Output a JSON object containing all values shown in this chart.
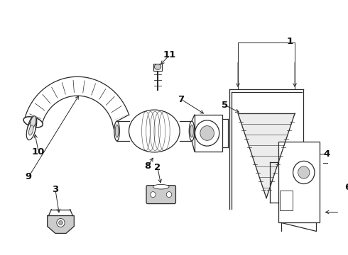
{
  "background_color": "#ffffff",
  "line_color": "#2a2a2a",
  "label_color": "#111111",
  "figsize": [
    4.9,
    3.6
  ],
  "dpi": 100
}
